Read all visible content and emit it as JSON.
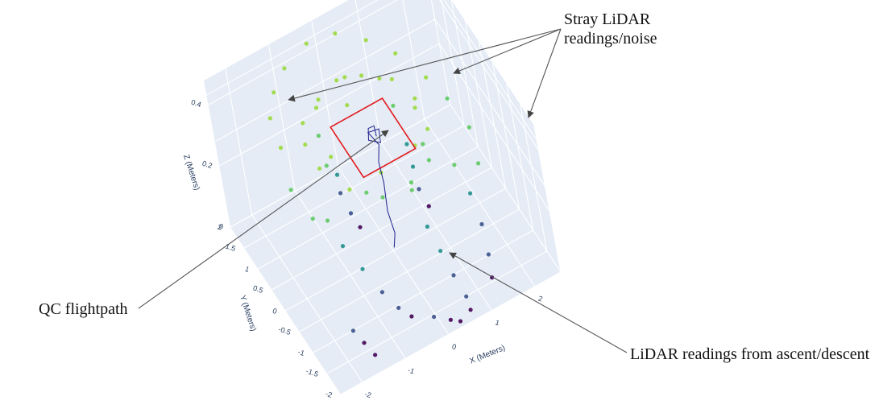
{
  "chart_data": {
    "type": "scatter3d",
    "title": "",
    "axes": {
      "x": {
        "label": "X (Meters)",
        "ticks": [
          "-2",
          "-1",
          "0",
          "1",
          "2"
        ],
        "range": [
          -2.5,
          2.6
        ]
      },
      "y": {
        "label": "Y (Meters)",
        "ticks": [
          "-2",
          "-1.5",
          "-1",
          "-0.5",
          "0",
          "0.5",
          "1",
          "1.5",
          "2"
        ],
        "range": [
          -2,
          2
        ]
      },
      "z": {
        "label": "Z (Meters)",
        "ticks": [
          "0",
          "0.2",
          "0.4"
        ],
        "range": [
          0,
          0.48
        ]
      }
    },
    "colorscale": "Viridis",
    "background": "#e5ecf6",
    "grid": true,
    "series": [
      {
        "kind": "lidar-points",
        "points": [
          [
            -1.5,
            1.4,
            0.36
          ],
          [
            -1.2,
            1.7,
            0.38
          ],
          [
            -0.8,
            1.9,
            0.4
          ],
          [
            -0.2,
            2.0,
            0.42
          ],
          [
            0.4,
            1.9,
            0.42
          ],
          [
            0.9,
            1.6,
            0.4
          ],
          [
            1.3,
            1.2,
            0.38
          ],
          [
            1.6,
            0.6,
            0.36
          ],
          [
            -1.6,
            0.9,
            0.34
          ],
          [
            -1.8,
            0.3,
            0.3
          ],
          [
            -1.7,
            -0.3,
            0.28
          ],
          [
            1.8,
            0.2,
            0.33
          ],
          [
            1.9,
            -0.4,
            0.31
          ],
          [
            1.7,
            -1.0,
            0.29
          ],
          [
            -1.0,
            1.0,
            0.36
          ],
          [
            -0.5,
            1.2,
            0.37
          ],
          [
            0.0,
            1.3,
            0.38
          ],
          [
            0.5,
            1.2,
            0.37
          ],
          [
            1.0,
            0.9,
            0.36
          ],
          [
            1.2,
            0.4,
            0.35
          ],
          [
            1.1,
            -0.2,
            0.34
          ],
          [
            0.8,
            -0.7,
            0.33
          ],
          [
            0.2,
            -1.0,
            0.32
          ],
          [
            -0.4,
            -0.9,
            0.33
          ],
          [
            -0.9,
            -0.5,
            0.34
          ],
          [
            -1.2,
            0.1,
            0.35
          ],
          [
            -1.2,
            0.6,
            0.36
          ],
          [
            -0.8,
            0.8,
            0.33
          ],
          [
            0.0,
            1.0,
            0.34
          ],
          [
            0.8,
            0.6,
            0.33
          ],
          [
            0.9,
            -0.3,
            0.32
          ],
          [
            0.3,
            -0.8,
            0.31
          ],
          [
            -0.6,
            -0.6,
            0.32
          ],
          [
            -1.0,
            0.2,
            0.33
          ],
          [
            -0.7,
            0.9,
            0.4
          ],
          [
            0.1,
            1.1,
            0.41
          ],
          [
            0.7,
            0.8,
            0.4
          ],
          [
            1.0,
            0.0,
            0.39
          ],
          [
            0.6,
            -0.6,
            0.38
          ],
          [
            -0.3,
            -0.8,
            0.39
          ],
          [
            -1.0,
            -0.1,
            0.4
          ],
          [
            -1.4,
            -0.3,
            0.25
          ],
          [
            -1.3,
            -0.6,
            0.2
          ],
          [
            -1.1,
            -0.9,
            0.15
          ],
          [
            -0.9,
            -1.2,
            0.1
          ],
          [
            -0.7,
            -1.4,
            0.06
          ],
          [
            -0.5,
            -1.5,
            0.03
          ],
          [
            1.4,
            -0.5,
            0.24
          ],
          [
            1.5,
            -0.8,
            0.18
          ],
          [
            1.5,
            -1.1,
            0.12
          ],
          [
            1.4,
            -1.4,
            0.07
          ],
          [
            1.3,
            -1.6,
            0.03
          ],
          [
            0.3,
            -1.2,
            0.22
          ],
          [
            0.4,
            -1.4,
            0.16
          ],
          [
            0.5,
            -1.6,
            0.1
          ],
          [
            0.6,
            -1.8,
            0.05
          ],
          [
            0.6,
            -1.9,
            0.02
          ],
          [
            -0.6,
            0.7,
            0.2
          ],
          [
            -0.6,
            0.7,
            0.14
          ],
          [
            -0.5,
            0.6,
            0.08
          ],
          [
            -0.4,
            0.5,
            0.04
          ],
          [
            0.9,
            0.5,
            0.21
          ],
          [
            0.9,
            0.4,
            0.15
          ],
          [
            0.9,
            0.3,
            0.09
          ],
          [
            1.0,
            0.2,
            0.04
          ],
          [
            -1.7,
            -1.3,
            0.05
          ],
          [
            -1.6,
            -1.5,
            0.03
          ],
          [
            -1.5,
            -1.7,
            0.01
          ],
          [
            -0.2,
            -1.9,
            0.06
          ],
          [
            0.1,
            -2.0,
            0.04
          ],
          [
            0.3,
            -2.0,
            0.02
          ]
        ]
      },
      {
        "kind": "flightpath",
        "color": "#1f1f8c",
        "path": [
          [
            0.05,
            0.05,
            0.0
          ],
          [
            0.1,
            0.0,
            0.05
          ],
          [
            0.05,
            0.05,
            0.12
          ],
          [
            0.1,
            0.1,
            0.2
          ],
          [
            0.05,
            0.05,
            0.28
          ],
          [
            0.1,
            0.0,
            0.34
          ],
          [
            0.0,
            0.2,
            0.36
          ],
          [
            0.2,
            0.1,
            0.37
          ],
          [
            0.1,
            -0.1,
            0.36
          ],
          [
            -0.1,
            0.0,
            0.37
          ],
          [
            0.0,
            0.15,
            0.38
          ],
          [
            0.15,
            0.2,
            0.37
          ],
          [
            0.1,
            0.05,
            0.36
          ]
        ]
      },
      {
        "kind": "reference-square",
        "color": "#e31a1c",
        "z": 0.37,
        "corners": [
          [
            -0.6,
            0.6
          ],
          [
            0.6,
            0.6
          ],
          [
            0.6,
            -0.6
          ],
          [
            -0.6,
            -0.6
          ]
        ]
      }
    ],
    "annotations": [
      {
        "lines": [
          "Stray LiDAR",
          "readings/noise"
        ]
      },
      {
        "lines": [
          "QC flightpath"
        ]
      },
      {
        "lines": [
          "LiDAR readings from ascent/descent"
        ]
      }
    ]
  }
}
